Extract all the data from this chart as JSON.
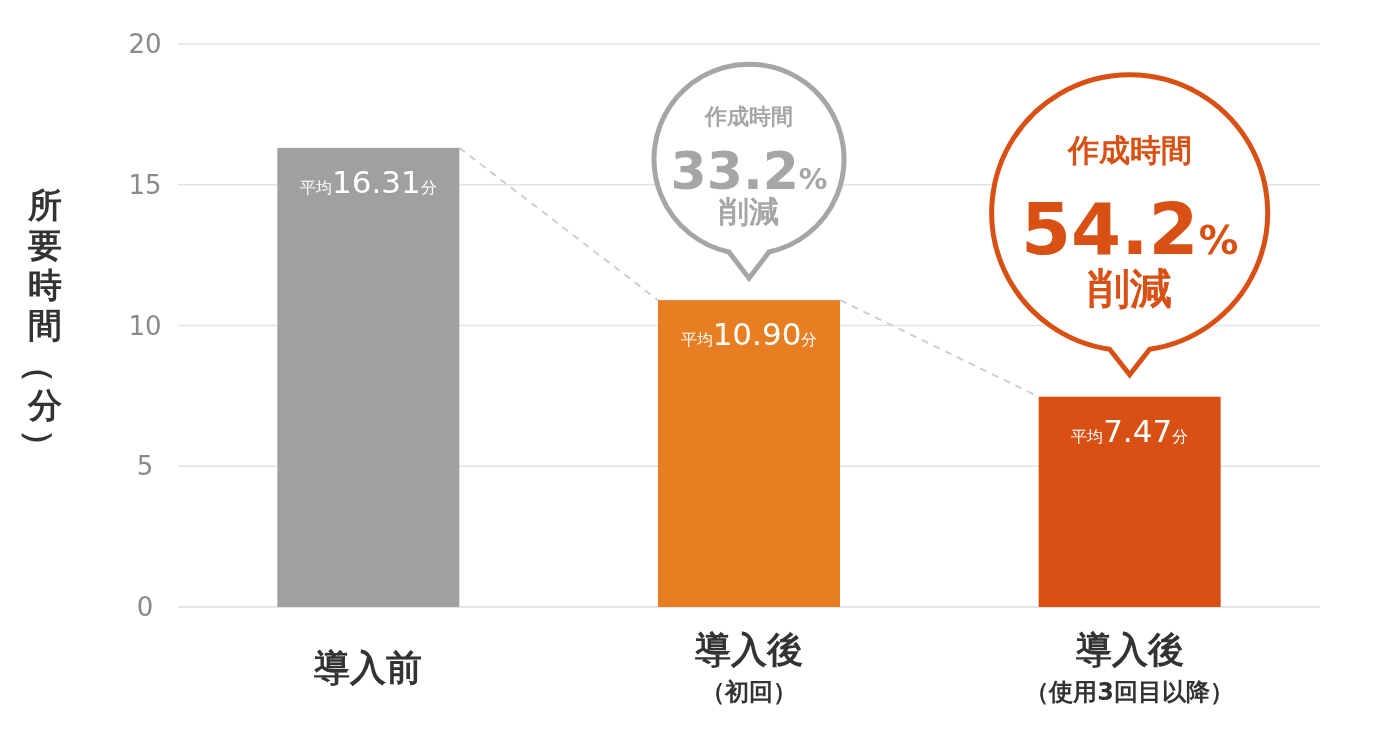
{
  "chart_data": {
    "type": "bar",
    "ylabel": "所要時間（分）",
    "categories": [
      "導入前",
      "導入後（初回）",
      "導入後（使用3回目以降）"
    ],
    "values": [
      16.31,
      10.9,
      7.47
    ],
    "colors": [
      "#a0a0a0",
      "#e87e22",
      "#d85014"
    ],
    "value_labels": [
      "平均16.31分",
      "平均10.90分",
      "平均7.47分"
    ],
    "annotations": [
      "作成時間\n33.2%\n削減",
      "作成時間\n54.2%\n削減"
    ],
    "ylim": [
      0,
      20
    ],
    "yticks": [
      0,
      5,
      10,
      15,
      20
    ],
    "grid": "y"
  }
}
